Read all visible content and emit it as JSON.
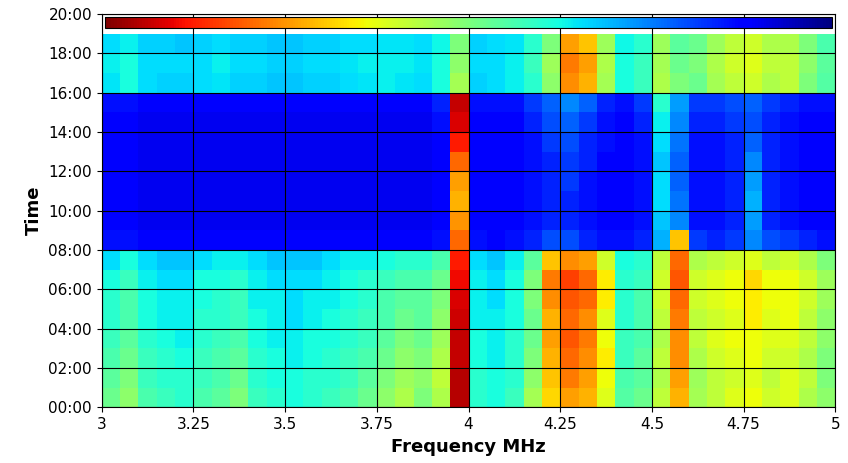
{
  "chart_data": {
    "type": "heatmap",
    "x_label": "Frequency MHz",
    "y_label": "Time",
    "xlim": [
      3,
      5
    ],
    "ylim": [
      0,
      20
    ],
    "xticks": [
      3,
      3.25,
      3.5,
      3.75,
      4,
      4.25,
      4.5,
      4.75,
      5
    ],
    "yticks": [
      {
        "value": 0,
        "label": "00:00"
      },
      {
        "value": 2,
        "label": "02:00"
      },
      {
        "value": 4,
        "label": "04:00"
      },
      {
        "value": 6,
        "label": "06:00"
      },
      {
        "value": 8,
        "label": "08:00"
      },
      {
        "value": 10,
        "label": "10:00"
      },
      {
        "value": 12,
        "label": "12:00"
      },
      {
        "value": 14,
        "label": "14:00"
      },
      {
        "value": 16,
        "label": "16:00"
      },
      {
        "value": 18,
        "label": "18:00"
      },
      {
        "value": 20,
        "label": "20:00"
      }
    ],
    "grid": true,
    "color": "jet",
    "colorbar_range": [
      0,
      100
    ],
    "x_edges": [
      3.0,
      3.05,
      3.1,
      3.15,
      3.2,
      3.25,
      3.3,
      3.35,
      3.4,
      3.45,
      3.5,
      3.55,
      3.6,
      3.65,
      3.7,
      3.75,
      3.8,
      3.85,
      3.9,
      3.95,
      4.0,
      4.05,
      4.1,
      4.15,
      4.2,
      4.25,
      4.3,
      4.35,
      4.4,
      4.45,
      4.5,
      4.55,
      4.6,
      4.65,
      4.7,
      4.75,
      4.8,
      4.85,
      4.9,
      4.95,
      5.0
    ],
    "y_edges": [
      0,
      1,
      2,
      3,
      4,
      5,
      6,
      7,
      8,
      9,
      10,
      11,
      12,
      13,
      14,
      15,
      16,
      17,
      18,
      19
    ],
    "cells": [
      [
        48,
        52,
        44,
        42,
        40,
        44,
        46,
        50,
        42,
        40,
        38,
        40,
        42,
        44,
        48,
        52,
        56,
        50,
        56,
        95,
        40,
        38,
        42,
        55,
        68,
        74,
        72,
        62,
        45,
        48,
        58,
        72,
        55,
        58,
        62,
        64,
        60,
        62,
        56,
        52
      ],
      [
        46,
        50,
        42,
        40,
        40,
        42,
        44,
        48,
        40,
        38,
        38,
        40,
        40,
        42,
        46,
        50,
        54,
        52,
        58,
        95,
        40,
        38,
        40,
        52,
        70,
        78,
        74,
        64,
        44,
        46,
        56,
        74,
        54,
        58,
        60,
        62,
        58,
        62,
        58,
        50
      ],
      [
        44,
        48,
        42,
        40,
        38,
        42,
        44,
        46,
        40,
        38,
        36,
        38,
        40,
        42,
        44,
        48,
        52,
        50,
        56,
        94,
        38,
        36,
        40,
        50,
        72,
        80,
        76,
        66,
        42,
        46,
        58,
        76,
        56,
        60,
        62,
        64,
        60,
        60,
        56,
        50
      ],
      [
        42,
        46,
        40,
        38,
        36,
        40,
        42,
        44,
        38,
        36,
        36,
        38,
        38,
        40,
        42,
        46,
        50,
        48,
        54,
        94,
        38,
        36,
        40,
        48,
        74,
        82,
        78,
        64,
        42,
        44,
        56,
        76,
        58,
        62,
        64,
        64,
        62,
        62,
        58,
        52
      ],
      [
        40,
        44,
        38,
        36,
        36,
        40,
        40,
        42,
        38,
        36,
        34,
        36,
        38,
        40,
        42,
        44,
        48,
        46,
        52,
        93,
        36,
        36,
        38,
        48,
        72,
        80,
        76,
        62,
        40,
        44,
        58,
        78,
        58,
        60,
        62,
        66,
        62,
        64,
        58,
        52
      ],
      [
        40,
        44,
        38,
        36,
        36,
        38,
        40,
        42,
        36,
        36,
        34,
        36,
        36,
        38,
        40,
        44,
        46,
        46,
        50,
        92,
        36,
        34,
        38,
        50,
        76,
        82,
        80,
        66,
        40,
        44,
        60,
        80,
        60,
        62,
        64,
        66,
        64,
        64,
        60,
        54
      ],
      [
        38,
        42,
        36,
        34,
        34,
        38,
        38,
        40,
        36,
        34,
        34,
        34,
        36,
        38,
        40,
        42,
        44,
        44,
        48,
        90,
        36,
        34,
        38,
        50,
        78,
        84,
        80,
        66,
        40,
        42,
        60,
        82,
        60,
        62,
        64,
        68,
        64,
        64,
        60,
        54
      ],
      [
        34,
        38,
        34,
        32,
        32,
        34,
        36,
        36,
        34,
        32,
        32,
        32,
        34,
        36,
        36,
        38,
        40,
        40,
        44,
        88,
        34,
        32,
        36,
        46,
        70,
        76,
        74,
        60,
        38,
        40,
        58,
        80,
        56,
        58,
        60,
        62,
        58,
        60,
        56,
        50
      ],
      [
        14,
        14,
        12,
        12,
        12,
        12,
        12,
        12,
        12,
        12,
        12,
        12,
        12,
        12,
        12,
        12,
        12,
        12,
        14,
        80,
        14,
        12,
        14,
        16,
        20,
        20,
        16,
        14,
        14,
        16,
        30,
        70,
        18,
        16,
        18,
        26,
        20,
        18,
        16,
        14
      ],
      [
        12,
        12,
        10,
        10,
        10,
        10,
        10,
        10,
        10,
        10,
        10,
        10,
        10,
        10,
        10,
        10,
        10,
        10,
        12,
        75,
        12,
        12,
        12,
        14,
        16,
        16,
        14,
        12,
        12,
        14,
        32,
        26,
        14,
        14,
        16,
        28,
        16,
        14,
        12,
        12
      ],
      [
        12,
        12,
        10,
        10,
        10,
        10,
        10,
        10,
        10,
        10,
        10,
        10,
        10,
        10,
        10,
        10,
        10,
        10,
        12,
        72,
        12,
        12,
        12,
        14,
        16,
        16,
        14,
        12,
        12,
        14,
        34,
        24,
        14,
        14,
        16,
        30,
        16,
        14,
        12,
        12
      ],
      [
        12,
        12,
        10,
        10,
        10,
        10,
        10,
        10,
        10,
        10,
        10,
        10,
        10,
        10,
        10,
        10,
        10,
        10,
        12,
        74,
        12,
        12,
        12,
        14,
        16,
        18,
        14,
        12,
        12,
        14,
        34,
        22,
        14,
        14,
        16,
        28,
        16,
        14,
        12,
        12
      ],
      [
        12,
        12,
        10,
        10,
        10,
        10,
        10,
        10,
        10,
        10,
        10,
        10,
        10,
        10,
        10,
        10,
        10,
        10,
        12,
        80,
        12,
        12,
        12,
        14,
        16,
        18,
        16,
        12,
        12,
        14,
        32,
        22,
        14,
        14,
        16,
        26,
        16,
        14,
        12,
        12
      ],
      [
        12,
        12,
        10,
        10,
        10,
        10,
        10,
        10,
        10,
        10,
        10,
        10,
        10,
        10,
        10,
        10,
        10,
        10,
        12,
        88,
        12,
        12,
        12,
        14,
        18,
        20,
        16,
        14,
        12,
        14,
        34,
        24,
        14,
        14,
        16,
        22,
        16,
        14,
        12,
        12
      ],
      [
        12,
        12,
        10,
        10,
        10,
        10,
        10,
        10,
        10,
        10,
        10,
        10,
        10,
        10,
        10,
        10,
        10,
        10,
        14,
        92,
        12,
        12,
        12,
        16,
        20,
        22,
        18,
        14,
        12,
        16,
        36,
        26,
        16,
        16,
        18,
        20,
        16,
        14,
        12,
        12
      ],
      [
        14,
        14,
        12,
        12,
        12,
        12,
        12,
        12,
        12,
        12,
        12,
        12,
        12,
        12,
        12,
        12,
        12,
        12,
        16,
        94,
        14,
        14,
        14,
        18,
        22,
        26,
        22,
        16,
        14,
        18,
        40,
        28,
        18,
        18,
        20,
        22,
        18,
        16,
        14,
        14
      ],
      [
        35,
        38,
        34,
        33,
        33,
        34,
        35,
        33,
        33,
        32,
        32,
        33,
        33,
        34,
        35,
        36,
        35,
        34,
        38,
        55,
        33,
        34,
        36,
        40,
        52,
        76,
        72,
        55,
        38,
        42,
        56,
        50,
        48,
        55,
        58,
        60,
        56,
        58,
        50,
        45
      ],
      [
        36,
        38,
        34,
        34,
        34,
        34,
        36,
        34,
        34,
        33,
        33,
        34,
        34,
        35,
        36,
        36,
        36,
        35,
        38,
        52,
        34,
        34,
        36,
        42,
        54,
        78,
        74,
        56,
        38,
        42,
        55,
        48,
        50,
        56,
        60,
        62,
        58,
        58,
        52,
        46
      ],
      [
        34,
        36,
        33,
        33,
        32,
        33,
        34,
        33,
        33,
        32,
        32,
        33,
        33,
        34,
        34,
        35,
        35,
        34,
        37,
        50,
        33,
        34,
        35,
        40,
        50,
        74,
        70,
        54,
        37,
        40,
        54,
        46,
        48,
        54,
        58,
        60,
        56,
        56,
        50,
        44
      ]
    ]
  }
}
